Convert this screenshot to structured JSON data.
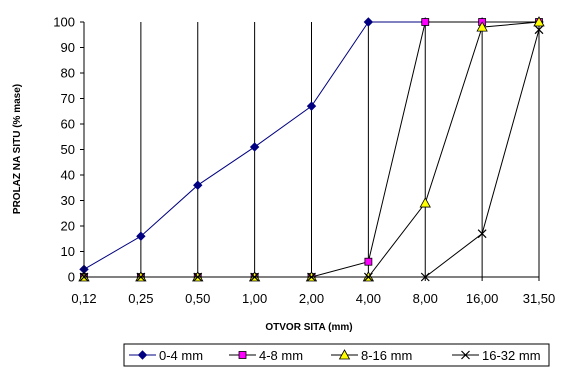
{
  "chart_data": {
    "type": "line",
    "categories": [
      "0,12",
      "0,25",
      "0,50",
      "1,00",
      "2,00",
      "4,00",
      "8,00",
      "16,00",
      "31,50"
    ],
    "xlabel": "OTVOR SITA (mm)",
    "ylabel": "PROLAZ NA SITU (% mase)",
    "ylim": [
      0,
      100
    ],
    "yticks": [
      "0",
      "10",
      "20",
      "30",
      "40",
      "50",
      "60",
      "70",
      "80",
      "90",
      "100"
    ],
    "grid": "vertical lines only",
    "legend_position": "bottom",
    "series": [
      {
        "name": "0-4 mm",
        "color": "#000080",
        "marker": "diamond",
        "values": [
          3,
          16,
          36,
          51,
          67,
          100,
          100,
          100,
          100
        ]
      },
      {
        "name": "4-8 mm",
        "color": "#ff00ff",
        "marker": "square",
        "values": [
          0,
          0,
          0,
          0,
          0,
          6,
          100,
          100,
          100
        ]
      },
      {
        "name": "8-16 mm",
        "color": "#ffff00",
        "marker": "triangle",
        "values": [
          0,
          0,
          0,
          0,
          0,
          0,
          29,
          98,
          100
        ]
      },
      {
        "name": "16-32 mm",
        "color": "#000000",
        "marker": "x",
        "values": [
          0,
          0,
          0,
          0,
          0,
          0,
          0,
          17,
          97
        ]
      }
    ]
  }
}
